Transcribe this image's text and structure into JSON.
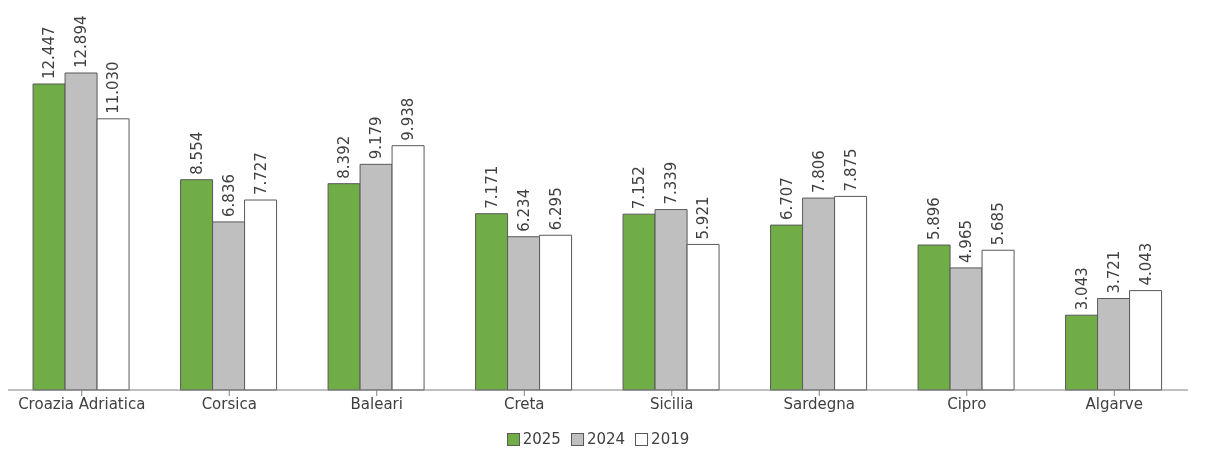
{
  "chart_data": {
    "type": "bar",
    "categories": [
      "Croazia Adriatica",
      "Corsica",
      "Baleari",
      "Creta",
      "Sicilia",
      "Sardegna",
      "Cipro",
      "Algarve"
    ],
    "series": [
      {
        "name": "2025",
        "color": "#70ad47",
        "values": [
          12447,
          8554,
          8392,
          7171,
          7152,
          6707,
          5896,
          3043
        ],
        "value_labels": [
          "12.447",
          "8.554",
          "8.392",
          "7.171",
          "7.152",
          "6.707",
          "5.896",
          "3.043"
        ]
      },
      {
        "name": "2024",
        "color": "#bfbfbf",
        "values": [
          12894,
          6836,
          9179,
          6234,
          7339,
          7806,
          4965,
          3721
        ],
        "value_labels": [
          "12.894",
          "6.836",
          "9.179",
          "6.234",
          "7.339",
          "7.806",
          "4.965",
          "3.721"
        ]
      },
      {
        "name": "2019",
        "color": "#ffffff",
        "values": [
          11030,
          7727,
          9938,
          6295,
          5921,
          7875,
          5685,
          4043
        ],
        "value_labels": [
          "11.030",
          "7.727",
          "9.938",
          "6.295",
          "5.921",
          "7.875",
          "5.685",
          "4.043"
        ]
      }
    ],
    "legend": "bottom",
    "grid": false
  }
}
